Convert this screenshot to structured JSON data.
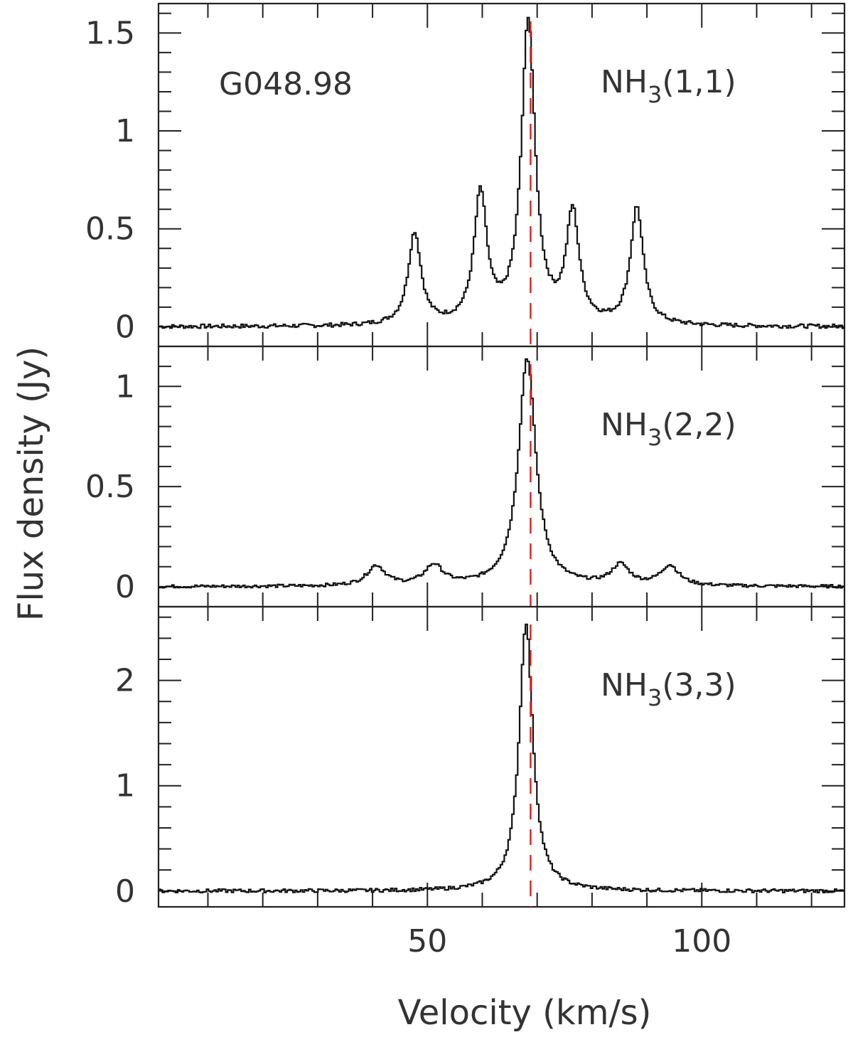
{
  "figure": {
    "source_label": "G048.98",
    "xlabel": "Velocity (km/s)",
    "ylabel": "Flux density (Jy)"
  },
  "chart_data": {
    "type": "line",
    "xlim": [
      1,
      126
    ],
    "x_ticks": [
      50,
      100
    ],
    "x_tick_labels": [
      "50",
      "100"
    ],
    "vsys_line_x": 68.8,
    "vsys_color": "#e0201a",
    "line_color": "#111111",
    "panels": [
      {
        "label_main": "NH",
        "label_sub": "3",
        "label_rest": "(1,1)",
        "ylim": [
          -0.1,
          1.65
        ],
        "y_ticks": [
          0,
          0.5,
          1,
          1.5
        ],
        "y_tick_labels": [
          "0",
          "0.5",
          "1",
          "1.5"
        ],
        "components": [
          {
            "center": 47.5,
            "amp": 0.47,
            "width": 1.4
          },
          {
            "center": 59.5,
            "amp": 0.66,
            "width": 1.4
          },
          {
            "center": 68.2,
            "amp": 1.55,
            "width": 1.5
          },
          {
            "center": 76.3,
            "amp": 0.56,
            "width": 1.4
          },
          {
            "center": 88.0,
            "amp": 0.6,
            "width": 1.4
          }
        ]
      },
      {
        "label_main": "NH",
        "label_sub": "3",
        "label_rest": "(2,2)",
        "ylim": [
          -0.1,
          1.2
        ],
        "y_ticks": [
          0,
          0.5,
          1
        ],
        "y_tick_labels": [
          "0",
          "0.5",
          "1"
        ],
        "components": [
          {
            "center": 40.5,
            "amp": 0.1,
            "width": 2.0
          },
          {
            "center": 51.0,
            "amp": 0.1,
            "width": 2.0
          },
          {
            "center": 68.0,
            "amp": 1.14,
            "width": 1.9
          },
          {
            "center": 85.0,
            "amp": 0.1,
            "width": 2.0
          },
          {
            "center": 94.0,
            "amp": 0.1,
            "width": 2.0
          }
        ]
      },
      {
        "label_main": "NH",
        "label_sub": "3",
        "label_rest": "(3,3)",
        "ylim": [
          -0.15,
          2.7
        ],
        "y_ticks": [
          0,
          1,
          2
        ],
        "y_tick_labels": [
          "0",
          "1",
          "2"
        ],
        "components": [
          {
            "center": 67.8,
            "amp": 2.55,
            "width": 1.5
          }
        ]
      }
    ]
  }
}
